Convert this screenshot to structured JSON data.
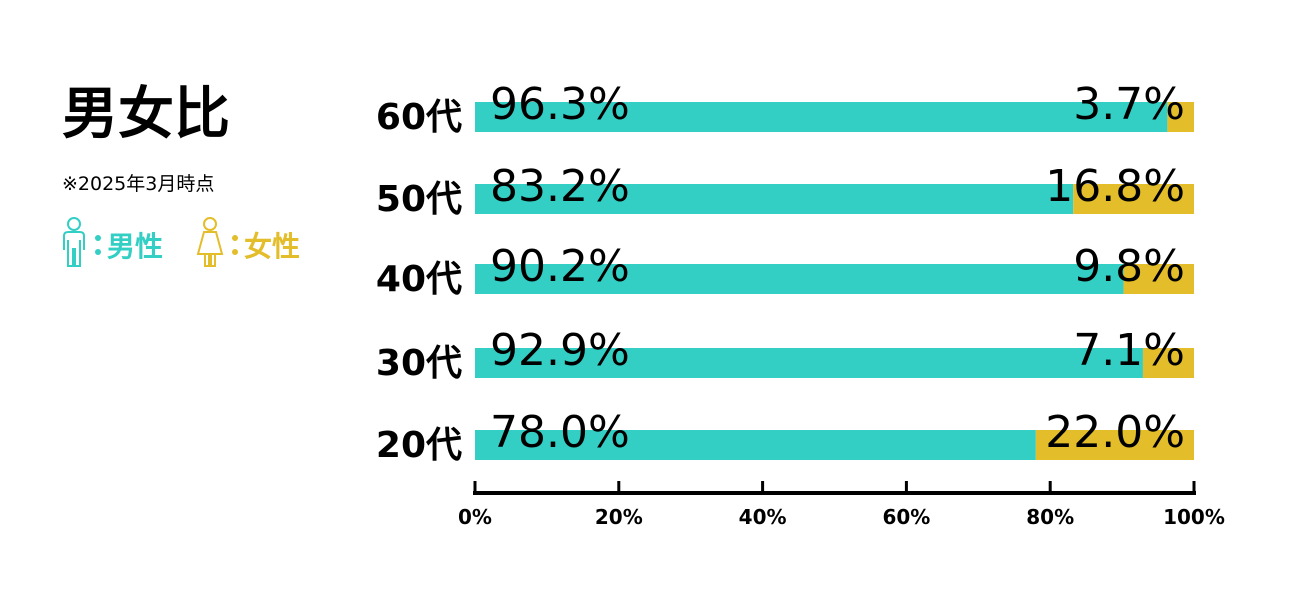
{
  "chart_data": {
    "type": "stacked-barh",
    "title": "男女比",
    "subtitle": "※2025年3月時点",
    "categories": [
      "60代",
      "50代",
      "40代",
      "30代",
      "20代"
    ],
    "series": [
      {
        "name": "男性",
        "color": "#33cfc4",
        "values": [
          96.3,
          83.2,
          90.2,
          92.9,
          78.0
        ],
        "value_labels": [
          "96.3%",
          "83.2%",
          "90.2%",
          "92.9%",
          "78.0%"
        ]
      },
      {
        "name": "女性",
        "color": "#e3bd2a",
        "values": [
          3.7,
          16.8,
          9.8,
          7.1,
          22.0
        ],
        "value_labels": [
          "3.7%",
          "16.8%",
          "9.8%",
          "7.1%",
          "22.0%"
        ]
      }
    ],
    "xlim": [
      0,
      100
    ],
    "xticks": [
      {
        "value": 0,
        "label": "0%"
      },
      {
        "value": 20,
        "label": "20%"
      },
      {
        "value": 40,
        "label": "40%"
      },
      {
        "value": 60,
        "label": "60%"
      },
      {
        "value": 80,
        "label": "80%"
      },
      {
        "value": 100,
        "label": "100%"
      }
    ]
  }
}
